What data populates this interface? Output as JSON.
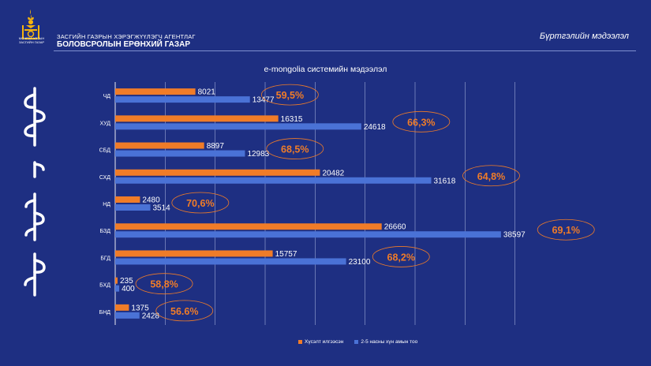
{
  "header": {
    "emblem_caption": "МОНГОЛ УЛСЫН ЗАСГИЙН ГАЗАР",
    "agency_line": "ЗАСГИЙН ГАЗРЫН ХЭРЭГЖҮҮЛЭГЧ АГЕНТЛАГ",
    "agency_name": "БОЛОВСРОЛЫН ЕРӨНХИЙ ГАЗАР",
    "section_title": "Бүртгэлийн мэдээлэл"
  },
  "colors": {
    "background": "#1e2f82",
    "series_requested": "#f07c28",
    "series_population": "#4a72d6",
    "percent_text": "#f07c28",
    "ellipse_stroke": "#f07c28"
  },
  "chart_data": {
    "type": "bar",
    "orientation": "horizontal",
    "title": "e-mongolia системийн мэдээлэл",
    "categories": [
      "ЧД",
      "ХУД",
      "СБД",
      "СХД",
      "НД",
      "БЗД",
      "БГД",
      "БХД",
      "БНД"
    ],
    "series": [
      {
        "name": "Хүсэлт илгээсэн",
        "values": [
          8021,
          16315,
          8897,
          20482,
          2480,
          26660,
          15757,
          235,
          1375
        ]
      },
      {
        "name": "2-5 насны хүн амын тоо",
        "values": [
          13477,
          24618,
          12983,
          31618,
          3514,
          38597,
          23100,
          400,
          2428
        ]
      }
    ],
    "percent_labels": [
      "59,5%",
      "66,3%",
      "68,5%",
      "64,8%",
      "70,6%",
      "69,1%",
      "68,2%",
      "58,8%",
      "56.6%"
    ],
    "xlim": [
      0,
      45000
    ],
    "grid": true,
    "legend_position": "bottom"
  }
}
